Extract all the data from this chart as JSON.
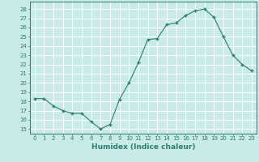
{
  "x": [
    0,
    1,
    2,
    3,
    4,
    5,
    6,
    7,
    8,
    9,
    10,
    11,
    12,
    13,
    14,
    15,
    16,
    17,
    18,
    19,
    20,
    21,
    22,
    23
  ],
  "y": [
    18.3,
    18.3,
    17.5,
    17.0,
    16.7,
    16.7,
    15.8,
    15.0,
    15.5,
    18.2,
    20.0,
    22.2,
    24.7,
    24.8,
    26.3,
    26.5,
    27.3,
    27.8,
    28.0,
    27.1,
    25.0,
    23.0,
    22.0,
    21.3
  ],
  "line_color": "#2e7d6e",
  "marker": "+",
  "marker_size": 3,
  "marker_lw": 1.0,
  "line_width": 0.8,
  "bg_color": "#c8eae8",
  "grid_color": "#ffffff",
  "tick_color": "#2e7d6e",
  "label_color": "#2e7d6e",
  "xlabel": "Humidex (Indice chaleur)",
  "ylabel_ticks": [
    15,
    16,
    17,
    18,
    19,
    20,
    21,
    22,
    23,
    24,
    25,
    26,
    27,
    28
  ],
  "ylim": [
    14.5,
    28.8
  ],
  "xlim": [
    -0.5,
    23.5
  ],
  "tick_fontsize": 5.0,
  "xlabel_fontsize": 6.5
}
